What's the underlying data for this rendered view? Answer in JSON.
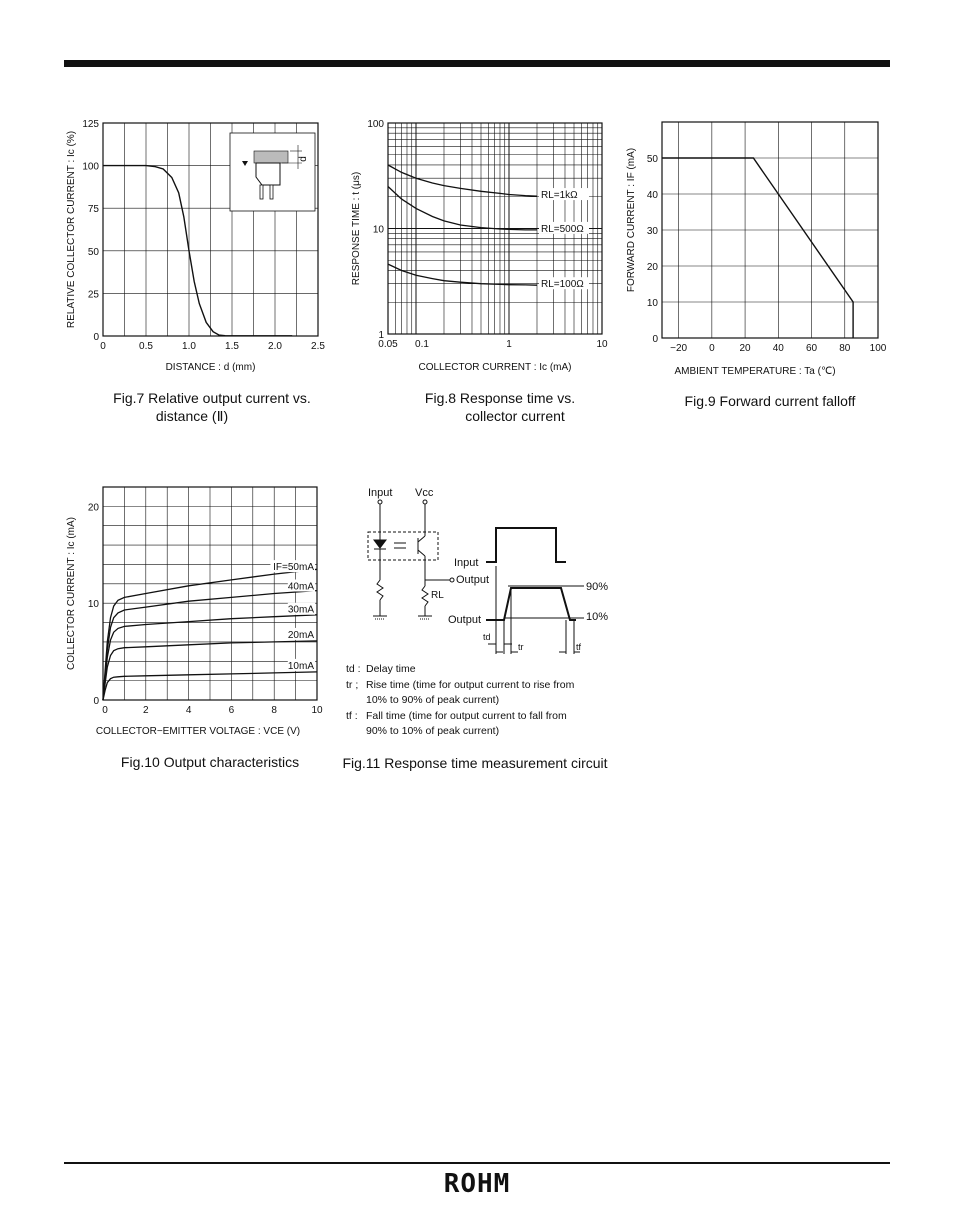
{
  "brand": {
    "logo_text": "ROHM"
  },
  "figures": {
    "fig7": {
      "caption_line1": "Fig.7 Relative output current vs.",
      "caption_line2": "distance (Ⅱ)"
    },
    "fig8": {
      "caption_line1": "Fig.8 Response time vs.",
      "caption_line2": "collector current"
    },
    "fig9": {
      "caption": "Fig.9 Forward current falloff"
    },
    "fig10": {
      "caption": "Fig.10 Output characteristics"
    },
    "fig11": {
      "caption": "Fig.11 Response time measurement circuit",
      "labels": {
        "input": "Input",
        "vcc": "Vcc",
        "output": "Output",
        "rl": "RL",
        "wave_input": "Input",
        "wave_output": "Output",
        "pct90": "90%",
        "pct10": "10%",
        "td": "td",
        "tr": "tr",
        "tf": "tf"
      },
      "legend": [
        {
          "sym": "td :",
          "text": "Delay time"
        },
        {
          "sym": "tr ;",
          "text": "Rise time (time for output current to rise from"
        },
        {
          "sym": "",
          "text": "10% to 90% of peak current)"
        },
        {
          "sym": "tf :",
          "text": "Fall time (time for output current to fall from"
        },
        {
          "sym": "",
          "text": "90% to 10% of peak current)"
        }
      ]
    }
  },
  "chart_data": [
    {
      "id": "fig7",
      "type": "line",
      "xlabel": "DISTANCE : d (mm)",
      "ylabel": "RELATIVE COLLECTOR CURRENT : Ic (%)",
      "xlim": [
        0,
        2.5
      ],
      "ylim": [
        0,
        125
      ],
      "xticks": [
        0,
        0.5,
        1.0,
        1.5,
        2.0,
        2.5
      ],
      "xtick_labels": [
        "0",
        "0.5",
        "1.0",
        "1.5",
        "2.0",
        "2.5"
      ],
      "yticks": [
        0,
        25,
        50,
        75,
        100,
        125
      ],
      "ytick_labels": [
        "0",
        "25",
        "50",
        "75",
        "100",
        "125"
      ],
      "inset_label": "d",
      "grid": true,
      "series": [
        {
          "x": [
            0,
            0.5,
            0.6,
            0.7,
            0.8,
            0.88,
            0.94,
            1.0,
            1.06,
            1.12,
            1.2,
            1.28,
            1.35,
            1.42,
            1.5,
            2.2
          ],
          "y": [
            100,
            100,
            99.5,
            98,
            93,
            84,
            70,
            50,
            32,
            19,
            8,
            2.5,
            0.5,
            0.2,
            0.1,
            0.1
          ]
        }
      ]
    },
    {
      "id": "fig8",
      "type": "line",
      "xlabel": "COLLECTOR CURRENT : Ic (mA)",
      "ylabel": "RESPONSE TIME : t (μs)",
      "xscale": "log",
      "yscale": "log",
      "xlim": [
        0.05,
        10
      ],
      "ylim": [
        1,
        100
      ],
      "xtick_labels": [
        "0.05",
        "0.1",
        "1",
        "10"
      ],
      "ytick_labels": [
        "1",
        "10",
        "100"
      ],
      "grid": true,
      "series": [
        {
          "name": "RL=1kΩ",
          "x": [
            0.05,
            0.07,
            0.1,
            0.15,
            0.2,
            0.3,
            0.5,
            0.8,
            1.0,
            1.5,
            2.0
          ],
          "y": [
            40,
            34,
            30,
            27,
            25.5,
            24,
            22.5,
            21.5,
            21,
            20.5,
            20.3
          ]
        },
        {
          "name": "RL=500Ω",
          "x": [
            0.05,
            0.07,
            0.1,
            0.15,
            0.2,
            0.3,
            0.5,
            0.8,
            1.0,
            1.5,
            2.0
          ],
          "y": [
            25,
            19,
            15.5,
            13,
            11.8,
            10.8,
            10.2,
            9.9,
            9.8,
            9.7,
            9.7
          ]
        },
        {
          "name": "RL=100Ω",
          "x": [
            0.05,
            0.07,
            0.1,
            0.15,
            0.2,
            0.3,
            0.5,
            0.8,
            1.0,
            1.5,
            2.0
          ],
          "y": [
            4.6,
            4.0,
            3.6,
            3.35,
            3.2,
            3.1,
            3.0,
            2.95,
            2.93,
            2.92,
            2.9
          ]
        }
      ]
    },
    {
      "id": "fig9",
      "type": "line",
      "xlabel": "AMBIENT TEMPERATURE : Ta (℃)",
      "ylabel": "FORWARD CURRENT : IF (mA)",
      "xlim": [
        -30,
        100
      ],
      "ylim": [
        0,
        60
      ],
      "xticks": [
        -20,
        0,
        20,
        40,
        60,
        80,
        100
      ],
      "xtick_labels": [
        "−20",
        "0",
        "20",
        "40",
        "60",
        "80",
        "100"
      ],
      "yticks": [
        0,
        10,
        20,
        30,
        40,
        50
      ],
      "ytick_labels": [
        "0",
        "10",
        "20",
        "30",
        "40",
        "50"
      ],
      "grid": true,
      "series": [
        {
          "x": [
            -30,
            25,
            85,
            85
          ],
          "y": [
            50,
            50,
            10,
            0
          ]
        }
      ]
    },
    {
      "id": "fig10",
      "type": "line",
      "xlabel": "COLLECTOR−EMITTER VOLTAGE : VCE (V)",
      "ylabel": "COLLECTOR CURRENT : Ic (mA)",
      "xlim": [
        0,
        10
      ],
      "ylim": [
        0,
        22
      ],
      "xticks": [
        0,
        2,
        4,
        6,
        8,
        10
      ],
      "xtick_labels": [
        "0",
        "2",
        "4",
        "6",
        "8",
        "10"
      ],
      "yticks": [
        0,
        10,
        20
      ],
      "ytick_labels": [
        "0",
        "10",
        "20"
      ],
      "grid": true,
      "series": [
        {
          "name": "IF=50mA",
          "x": [
            0,
            0.1,
            0.2,
            0.35,
            0.5,
            0.7,
            1.0,
            2,
            4,
            6,
            8,
            10
          ],
          "y": [
            0,
            3,
            6,
            8.5,
            9.7,
            10.3,
            10.6,
            11,
            11.8,
            12.4,
            13,
            13.5
          ]
        },
        {
          "name": "40mA",
          "x": [
            0,
            0.1,
            0.2,
            0.35,
            0.5,
            0.7,
            1.0,
            2,
            4,
            6,
            8,
            10
          ],
          "y": [
            0,
            2.6,
            5.2,
            7.5,
            8.5,
            9,
            9.3,
            9.6,
            10.2,
            10.6,
            11,
            11.3
          ]
        },
        {
          "name": "30mA",
          "x": [
            0,
            0.1,
            0.2,
            0.35,
            0.5,
            0.7,
            1.0,
            2,
            4,
            6,
            8,
            10
          ],
          "y": [
            0,
            2.2,
            4.4,
            6.2,
            7,
            7.4,
            7.6,
            7.8,
            8.1,
            8.4,
            8.6,
            8.8
          ]
        },
        {
          "name": "20mA",
          "x": [
            0,
            0.1,
            0.2,
            0.35,
            0.5,
            0.7,
            1.0,
            2,
            4,
            6,
            8,
            10
          ],
          "y": [
            0,
            1.7,
            3.4,
            4.6,
            5.1,
            5.3,
            5.4,
            5.5,
            5.7,
            5.9,
            6.0,
            6.1
          ]
        },
        {
          "name": "10mA",
          "x": [
            0,
            0.1,
            0.2,
            0.35,
            0.5,
            0.7,
            1.0,
            2,
            4,
            6,
            8,
            10
          ],
          "y": [
            0,
            1,
            1.8,
            2.2,
            2.35,
            2.4,
            2.45,
            2.5,
            2.6,
            2.7,
            2.8,
            2.9
          ]
        }
      ]
    }
  ]
}
